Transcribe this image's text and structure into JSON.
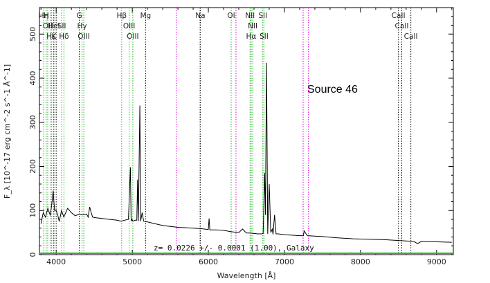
{
  "chart_data": {
    "type": "line",
    "title": "",
    "xlabel": "Wavelength [Å]",
    "ylabel": "F_λ [10^-17 erg cm^-2 s^-1 Å^-1]",
    "xlim": [
      3780,
      9220
    ],
    "ylim": [
      0,
      560
    ],
    "x_ticks": [
      4000,
      5000,
      6000,
      7000,
      8000,
      9000
    ],
    "y_ticks": [
      0,
      100,
      200,
      300,
      400,
      500
    ],
    "grid": false,
    "source_label": "Source 46",
    "redshift_annotation": "z= 0.0226 +/- 0.0001 (1.00), Galaxy",
    "colors": {
      "spectrum": "#000000",
      "emission": "#22bb22",
      "absorption": "#000000",
      "sky": "#dd00dd"
    },
    "series": [
      {
        "x": [
          3800,
          3830,
          3860,
          3890,
          3920,
          3940,
          3960,
          3970,
          3980,
          4000,
          4020,
          4040,
          4070,
          4100,
          4150,
          4200,
          4250,
          4300,
          4350,
          4400,
          4420,
          4440,
          4460,
          4480,
          4500,
          4600,
          4700,
          4800,
          4850,
          4900,
          4950,
          4975,
          4985,
          4995,
          5010,
          5040,
          5060,
          5070,
          5080,
          5100,
          5110,
          5130,
          5150,
          5200,
          5300,
          5400,
          5500,
          5600,
          5700,
          5800,
          5900,
          6000,
          6010,
          6020,
          6100,
          6200,
          6300,
          6400,
          6450,
          6500,
          6560,
          6600,
          6650,
          6700,
          6720,
          6740,
          6750,
          6765,
          6780,
          6800,
          6820,
          6840,
          6850,
          6870,
          6890,
          6920,
          7000,
          7100,
          7200,
          7250,
          7260,
          7300,
          7500,
          7700,
          7900,
          8100,
          8300,
          8500,
          8700,
          8750,
          8800,
          9000,
          9200
        ],
        "y": [
          70,
          95,
          85,
          105,
          90,
          110,
          145,
          120,
          100,
          100,
          90,
          75,
          100,
          85,
          105,
          95,
          88,
          92,
          90,
          92,
          85,
          108,
          95,
          85,
          84,
          82,
          80,
          78,
          76,
          78,
          80,
          198,
          76,
          80,
          76,
          78,
          78,
          170,
          76,
          338,
          76,
          95,
          76,
          74,
          70,
          66,
          64,
          62,
          61,
          60,
          59,
          57,
          82,
          56,
          56,
          55,
          52,
          50,
          58,
          49,
          49,
          48,
          47,
          47,
          48,
          185,
          90,
          435,
          47,
          160,
          50,
          58,
          46,
          90,
          47,
          47,
          45,
          44,
          43,
          43,
          54,
          43,
          41,
          38,
          36,
          35,
          34,
          32,
          30,
          25,
          30,
          29,
          28
        ]
      }
    ],
    "emission_lines": [
      {
        "x": 3727,
        "label": "OII",
        "row": 1
      },
      {
        "x": 3835,
        "label": "Hη",
        "row": 1
      },
      {
        "x": 3869,
        "label": "H",
        "row": 1
      },
      {
        "x": 3889,
        "label": "OII",
        "row": 2
      },
      {
        "x": 3970,
        "label": "HeI",
        "row": 2
      },
      {
        "x": 4072,
        "label": "SII",
        "row": 2
      },
      {
        "x": 4102,
        "label": "Hδ",
        "row": 3
      },
      {
        "x": 4340,
        "label": "Hγ",
        "row": 2
      },
      {
        "x": 4363,
        "label": "OIII",
        "row": 3
      },
      {
        "x": 4861,
        "label": "Hβ",
        "row": 1
      },
      {
        "x": 4959,
        "label": "OIII",
        "row": 2
      },
      {
        "x": 5007,
        "label": "OIII",
        "row": 3
      },
      {
        "x": 5890,
        "label": "",
        "row": 1
      },
      {
        "x": 6300,
        "label": "OI",
        "row": 1
      },
      {
        "x": 6548,
        "label": "NII",
        "row": 1
      },
      {
        "x": 6563,
        "label": "Hα",
        "row": 3
      },
      {
        "x": 6583,
        "label": "NII",
        "row": 2
      },
      {
        "x": 6716,
        "label": "SII",
        "row": 1
      },
      {
        "x": 6731,
        "label": "SII",
        "row": 3
      }
    ],
    "absorption_lines": [
      {
        "x": 3934,
        "label": "Hε",
        "row": 3
      },
      {
        "x": 3969,
        "label": "K",
        "row": 3
      },
      {
        "x": 4000,
        "label": "",
        "row": 1
      },
      {
        "x": 4304,
        "label": "G",
        "row": 1
      },
      {
        "x": 5175,
        "label": "Mg",
        "row": 1
      },
      {
        "x": 5894,
        "label": "Na",
        "row": 1
      },
      {
        "x": 8498,
        "label": "CaII",
        "row": 1
      },
      {
        "x": 8542,
        "label": "CaII",
        "row": 2
      },
      {
        "x": 8662,
        "label": "CaII",
        "row": 3
      }
    ],
    "sky_lines": [
      5577,
      5890,
      6300,
      6363,
      7246,
      7316
    ]
  }
}
